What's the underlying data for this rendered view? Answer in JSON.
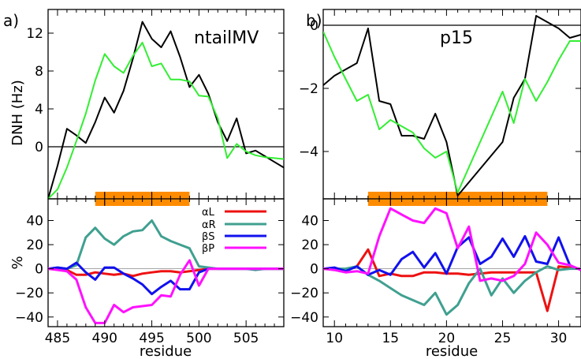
{
  "colors": {
    "black": "#000000",
    "green": "#33ee33",
    "orange": "#ff8c00",
    "red": "#ee1111",
    "teal": "#40a090",
    "blue": "#1111ee",
    "magenta": "#ff11ff",
    "zero": "#888888"
  },
  "chart_data": [
    {
      "panel": "a)",
      "type": "line",
      "title": "ntailMV",
      "ylabel": "DNH (Hz)",
      "xlim": [
        484,
        509
      ],
      "ylim": [
        -5.5,
        14.5
      ],
      "yticks": [
        0,
        4,
        8,
        12
      ],
      "ytick_labels": [
        "0",
        "4",
        "8",
        "12"
      ],
      "xticks": [
        485,
        490,
        495,
        500,
        505
      ],
      "orange_bar": [
        489,
        499
      ],
      "series": [
        {
          "color": "black",
          "x": [
            484,
            485,
            486,
            487,
            488,
            489,
            490,
            491,
            492,
            493,
            494,
            495,
            496,
            497,
            498,
            499,
            500,
            501,
            502,
            503,
            504,
            505,
            506,
            507,
            508,
            509
          ],
          "y": [
            -5.5,
            -2.0,
            1.9,
            1.2,
            0.4,
            2.6,
            5.2,
            3.6,
            5.9,
            9.3,
            13.2,
            11.4,
            10.5,
            12.2,
            9.5,
            6.3,
            7.6,
            5.6,
            2.6,
            0.6,
            3.0,
            -0.7,
            -0.4,
            -1.0,
            -1.6,
            -2.2
          ]
        },
        {
          "color": "green",
          "x": [
            484,
            485,
            486,
            487,
            488,
            489,
            490,
            491,
            492,
            493,
            494,
            495,
            496,
            497,
            498,
            499,
            500,
            501,
            502,
            503,
            504,
            505,
            506,
            507,
            508,
            509
          ],
          "y": [
            -5.5,
            -4.5,
            -2.2,
            0.6,
            3.5,
            7.0,
            9.8,
            8.5,
            7.8,
            9.6,
            11.0,
            8.5,
            8.8,
            7.1,
            7.1,
            6.9,
            5.4,
            5.3,
            3.0,
            -1.2,
            0.3,
            -0.5,
            -0.9,
            -1.1,
            -1.2,
            -1.3
          ]
        }
      ]
    },
    {
      "panel": "b)",
      "type": "line",
      "title": "p15",
      "xlim": [
        9,
        32
      ],
      "ylim": [
        -5.5,
        0.5
      ],
      "yticks": [
        0,
        -2,
        -4
      ],
      "ytick_labels": [
        "0",
        "−2",
        "−4"
      ],
      "xticks": [
        10,
        15,
        20,
        25,
        30
      ],
      "orange_bar": [
        13,
        29
      ],
      "series": [
        {
          "color": "black",
          "x": [
            9,
            10,
            11,
            12,
            13,
            14,
            15,
            16,
            17,
            18,
            19,
            20,
            21,
            25,
            26,
            27,
            28,
            29,
            30,
            31,
            32
          ],
          "y": [
            -1.9,
            -1.6,
            -1.4,
            -1.2,
            -0.1,
            -2.4,
            -2.5,
            -3.5,
            -3.5,
            -3.6,
            -2.8,
            -3.7,
            -5.4,
            -3.7,
            -2.3,
            -1.7,
            0.3,
            0.1,
            -0.1,
            -0.4,
            -0.3
          ]
        },
        {
          "color": "green",
          "x": [
            9,
            10,
            11,
            12,
            13,
            14,
            15,
            16,
            17,
            18,
            19,
            20,
            21,
            25,
            26,
            27,
            28,
            29,
            30,
            31,
            32
          ],
          "y": [
            -0.2,
            -1.0,
            -1.7,
            -2.4,
            -2.2,
            -3.3,
            -3.0,
            -3.2,
            -3.4,
            -3.9,
            -4.2,
            -4.0,
            -5.3,
            -2.1,
            -3.1,
            -1.7,
            -2.4,
            -1.8,
            -1.1,
            -0.5,
            -0.5
          ]
        }
      ]
    },
    {
      "type": "line",
      "ylabel": "%",
      "xlabel": "residue",
      "xlim": [
        484,
        509
      ],
      "ylim": [
        -48,
        58
      ],
      "yticks": [
        40,
        20,
        0,
        -20,
        -40
      ],
      "ytick_labels": [
        "40",
        "20",
        "0",
        "−20",
        "−40"
      ],
      "xticks": [
        485,
        490,
        495,
        500,
        505
      ],
      "series": [
        {
          "name": "αL",
          "color": "red",
          "x": [
            484,
            485,
            486,
            487,
            488,
            489,
            490,
            491,
            492,
            493,
            494,
            495,
            496,
            497,
            498,
            499,
            500,
            501,
            502,
            503,
            504,
            505,
            506,
            507,
            508,
            509
          ],
          "y": [
            0,
            0,
            -1,
            -5,
            -5,
            -3,
            -4,
            -5,
            -4,
            -6,
            -4,
            -3,
            -2,
            -2,
            -3,
            -2,
            -1,
            0,
            0,
            0,
            0,
            0,
            0,
            0,
            0,
            0
          ]
        },
        {
          "name": "αR",
          "color": "teal",
          "x": [
            484,
            485,
            486,
            487,
            488,
            489,
            490,
            491,
            492,
            493,
            494,
            495,
            496,
            497,
            498,
            499,
            500,
            501,
            502,
            503,
            504,
            505,
            506,
            507,
            508,
            509
          ],
          "y": [
            0,
            1,
            0,
            3,
            26,
            34,
            25,
            20,
            27,
            31,
            32,
            40,
            27,
            23,
            20,
            17,
            2,
            1,
            0,
            0,
            0,
            0,
            -1,
            0,
            0,
            0
          ]
        },
        {
          "name": "βS",
          "color": "blue",
          "x": [
            484,
            485,
            486,
            487,
            488,
            489,
            490,
            491,
            492,
            493,
            494,
            495,
            496,
            497,
            498,
            499,
            500,
            501,
            502,
            503,
            504,
            505,
            506,
            507,
            508,
            509
          ],
          "y": [
            0,
            1,
            0,
            5,
            -3,
            -9,
            1,
            1,
            -4,
            -8,
            -13,
            -21,
            -15,
            -10,
            -17,
            -17,
            -3,
            0,
            0,
            0,
            0,
            0,
            0,
            0,
            0,
            0
          ]
        },
        {
          "name": "βP",
          "color": "magenta",
          "x": [
            484,
            485,
            486,
            487,
            488,
            489,
            490,
            491,
            492,
            493,
            494,
            495,
            496,
            497,
            498,
            499,
            500,
            501,
            502,
            503,
            504,
            505,
            506,
            507,
            508,
            509
          ],
          "y": [
            0,
            -1,
            -2,
            -9,
            -32,
            -45,
            -45,
            -30,
            -36,
            -32,
            -31,
            -30,
            -22,
            -23,
            -5,
            7,
            -14,
            0,
            0,
            0,
            0,
            0,
            0,
            0,
            0,
            0
          ]
        }
      ]
    },
    {
      "type": "line",
      "xlabel": "residue",
      "xlim": [
        9,
        32
      ],
      "ylim": [
        -48,
        58
      ],
      "yticks": [
        40,
        20,
        0,
        -20,
        -40
      ],
      "ytick_labels": [
        "40",
        "20",
        "0",
        "−20",
        "−40"
      ],
      "xticks": [
        10,
        15,
        20,
        25,
        30
      ],
      "series": [
        {
          "name": "αL",
          "color": "red",
          "x": [
            9,
            10,
            11,
            12,
            13,
            14,
            15,
            16,
            17,
            18,
            19,
            20,
            21,
            22,
            23,
            24,
            25,
            26,
            27,
            28,
            29,
            30,
            31,
            32
          ],
          "y": [
            0,
            0,
            -1,
            2,
            16,
            -6,
            -4,
            -6,
            -6,
            -3,
            -3,
            -4,
            -4,
            -5,
            -4,
            -3,
            -3,
            -3,
            -3,
            -3,
            -35,
            2,
            1,
            0
          ]
        },
        {
          "name": "αR",
          "color": "teal",
          "x": [
            9,
            10,
            11,
            12,
            13,
            14,
            15,
            16,
            17,
            18,
            19,
            20,
            21,
            22,
            23,
            24,
            25,
            26,
            27,
            28,
            29,
            30,
            31,
            32
          ],
          "y": [
            0,
            0,
            0,
            2,
            -5,
            -10,
            -16,
            -22,
            -26,
            -30,
            -20,
            -38,
            -30,
            -12,
            0,
            -22,
            -8,
            -20,
            -10,
            -3,
            2,
            -1,
            0,
            0
          ]
        },
        {
          "name": "βS",
          "color": "blue",
          "x": [
            9,
            10,
            11,
            12,
            13,
            14,
            15,
            16,
            17,
            18,
            19,
            20,
            21,
            22,
            23,
            24,
            25,
            26,
            27,
            28,
            29,
            30,
            31,
            32
          ],
          "y": [
            0,
            1,
            -2,
            2,
            -5,
            -1,
            -5,
            8,
            14,
            1,
            13,
            -4,
            18,
            26,
            4,
            10,
            25,
            10,
            27,
            6,
            4,
            26,
            3,
            -1
          ]
        },
        {
          "name": "βP",
          "color": "magenta",
          "x": [
            9,
            10,
            11,
            12,
            13,
            14,
            15,
            16,
            17,
            18,
            19,
            20,
            21,
            22,
            23,
            24,
            25,
            26,
            27,
            28,
            29,
            30,
            31,
            32
          ],
          "y": [
            0,
            -1,
            -3,
            -2,
            -4,
            27,
            50,
            45,
            40,
            38,
            50,
            46,
            17,
            35,
            -10,
            -8,
            -10,
            -6,
            4,
            30,
            20,
            5,
            3,
            -1
          ]
        }
      ]
    }
  ],
  "legend": [
    {
      "label": "αL",
      "color": "red"
    },
    {
      "label": "αR",
      "color": "teal"
    },
    {
      "label": "βS",
      "color": "blue"
    },
    {
      "label": "βP",
      "color": "magenta"
    }
  ]
}
